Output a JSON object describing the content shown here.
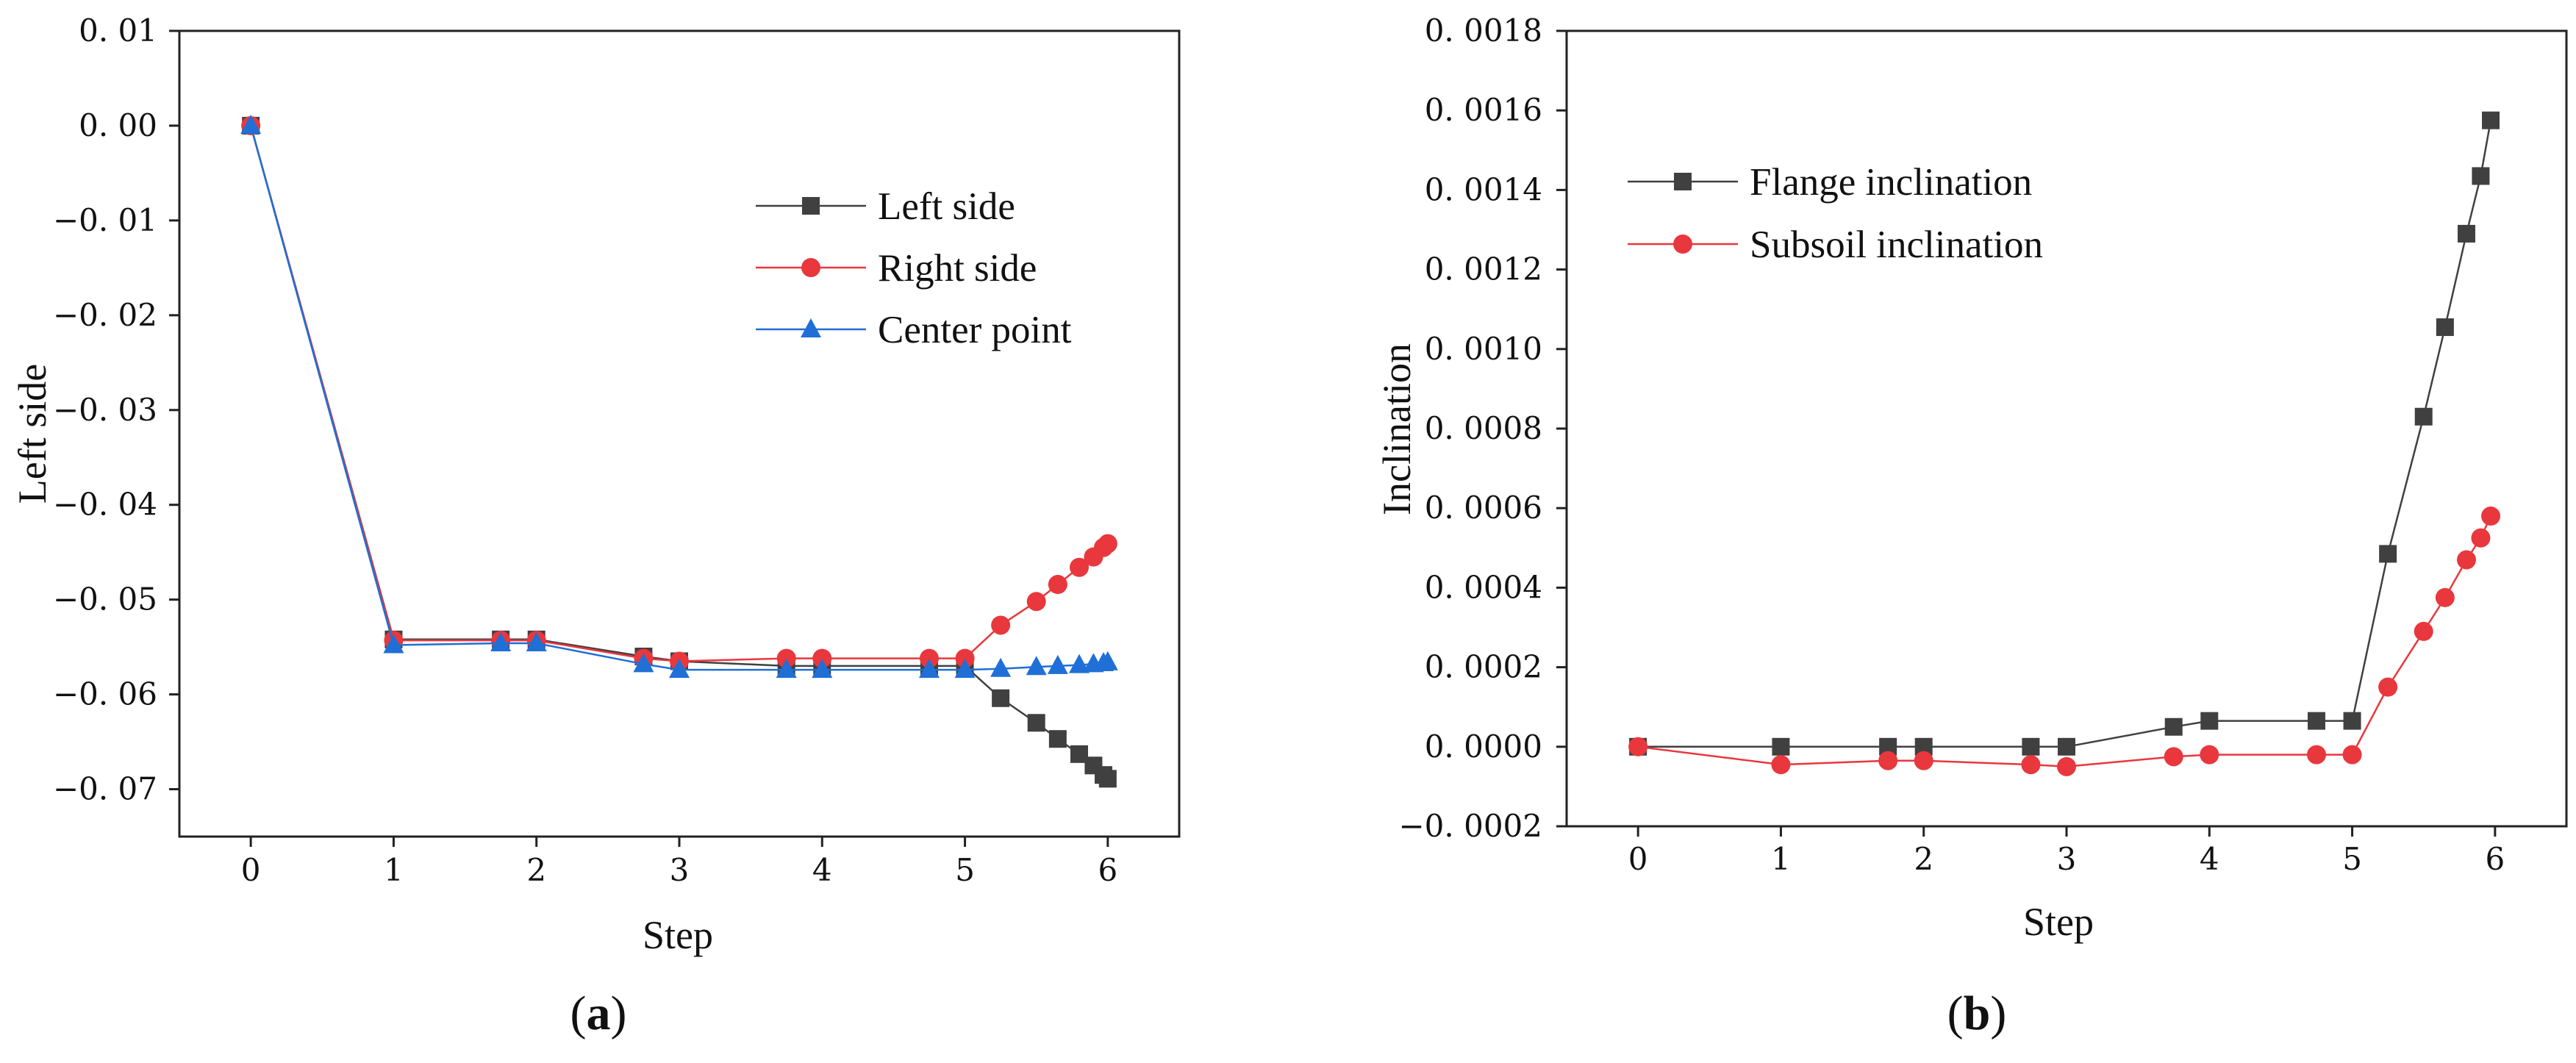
{
  "colors": {
    "left_side": "#404040",
    "right_side": "#e8373d",
    "center_point": "#1f6fd6",
    "flange": "#404040",
    "subsoil": "#e8373d"
  },
  "chart_data": [
    {
      "type": "line",
      "panel": "a",
      "caption_open": "(",
      "caption_letter": "a",
      "caption_close": ")",
      "xlabel": "Step",
      "ylabel": "Left side",
      "xlim": [
        -0.5,
        6.5
      ],
      "ylim": [
        -0.075,
        0.01
      ],
      "x_ticks": [
        0,
        1,
        2,
        3,
        4,
        5,
        6
      ],
      "x_tick_labels": [
        "0",
        "1",
        "2",
        "3",
        "4",
        "5",
        "6"
      ],
      "y_ticks": [
        0.01,
        0.0,
        -0.01,
        -0.02,
        -0.03,
        -0.04,
        -0.05,
        -0.06,
        -0.07
      ],
      "y_tick_labels": [
        "0. 01",
        "0. 00",
        "−0. 01",
        "−0. 02",
        "−0. 03",
        "−0. 04",
        "−0. 05",
        "−0. 06",
        "−0. 07"
      ],
      "legend_position": "top-right",
      "series": [
        {
          "name": "Left side",
          "marker": "square",
          "color": "#404040",
          "x": [
            0,
            1,
            1.75,
            2,
            2.75,
            3,
            3.75,
            4,
            4.75,
            5,
            5.25,
            5.5,
            5.65,
            5.8,
            5.9,
            5.97,
            6
          ],
          "y": [
            0,
            -0.0542,
            -0.0542,
            -0.0542,
            -0.056,
            -0.0565,
            -0.057,
            -0.057,
            -0.057,
            -0.057,
            -0.0604,
            -0.063,
            -0.0647,
            -0.0663,
            -0.0675,
            -0.0685,
            -0.0689
          ]
        },
        {
          "name": "Right side",
          "marker": "circle",
          "color": "#e8373d",
          "x": [
            0,
            1,
            1.75,
            2,
            2.75,
            3,
            3.75,
            4,
            4.75,
            5,
            5.25,
            5.5,
            5.65,
            5.8,
            5.9,
            5.97,
            6
          ],
          "y": [
            0,
            -0.0543,
            -0.0543,
            -0.0543,
            -0.0562,
            -0.0565,
            -0.0562,
            -0.0562,
            -0.0562,
            -0.0562,
            -0.0527,
            -0.0502,
            -0.0484,
            -0.0466,
            -0.0455,
            -0.0445,
            -0.0441
          ]
        },
        {
          "name": "Center point",
          "marker": "triangle",
          "color": "#1f6fd6",
          "x": [
            0,
            1,
            1.75,
            2,
            2.75,
            3,
            3.75,
            4,
            4.75,
            5,
            5.25,
            5.5,
            5.65,
            5.8,
            5.9,
            5.97,
            6
          ],
          "y": [
            0,
            -0.0548,
            -0.0546,
            -0.0546,
            -0.0568,
            -0.0574,
            -0.0574,
            -0.0574,
            -0.0574,
            -0.0574,
            -0.0573,
            -0.0571,
            -0.057,
            -0.0569,
            -0.0568,
            -0.0567,
            -0.0566
          ]
        }
      ]
    },
    {
      "type": "line",
      "panel": "b",
      "caption_open": "(",
      "caption_letter": "b",
      "caption_close": ")",
      "xlabel": "Step",
      "ylabel": "Inclination",
      "xlim": [
        -0.5,
        6.5
      ],
      "ylim": [
        -0.0002,
        0.0018
      ],
      "x_ticks": [
        0,
        1,
        2,
        3,
        4,
        5,
        6
      ],
      "x_tick_labels": [
        "0",
        "1",
        "2",
        "3",
        "4",
        "5",
        "6"
      ],
      "y_ticks": [
        0.0018,
        0.0016,
        0.0014,
        0.0012,
        0.001,
        0.0008,
        0.0006,
        0.0004,
        0.0002,
        0.0,
        -0.0002
      ],
      "y_tick_labels": [
        "0. 0018",
        "0. 0016",
        "0. 0014",
        "0. 0012",
        "0. 0010",
        "0. 0008",
        "0. 0006",
        "0. 0004",
        "0. 0002",
        "0. 0000",
        "−0. 0002"
      ],
      "legend_position": "top-left",
      "series": [
        {
          "name": "Flange inclination",
          "marker": "square",
          "color": "#404040",
          "x": [
            0,
            1,
            1.75,
            2,
            2.75,
            3,
            3.75,
            4,
            4.75,
            5,
            5.25,
            5.5,
            5.65,
            5.8,
            5.9,
            5.97
          ],
          "y": [
            0,
            0,
            0,
            0,
            0,
            0,
            5e-05,
            6.5e-05,
            6.5e-05,
            6.5e-05,
            0.000485,
            0.00083,
            0.001055,
            0.00129,
            0.001435,
            0.001575
          ]
        },
        {
          "name": "Subsoil inclination",
          "marker": "circle",
          "color": "#e8373d",
          "x": [
            0,
            1,
            1.75,
            2,
            2.75,
            3,
            3.75,
            4,
            4.75,
            5,
            5.25,
            5.5,
            5.65,
            5.8,
            5.9,
            5.97
          ],
          "y": [
            0,
            -4.5e-05,
            -3.5e-05,
            -3.5e-05,
            -4.5e-05,
            -5e-05,
            -2.5e-05,
            -2e-05,
            -2e-05,
            -2e-05,
            0.00015,
            0.00029,
            0.000375,
            0.00047,
            0.000525,
            0.00058
          ]
        }
      ]
    }
  ]
}
